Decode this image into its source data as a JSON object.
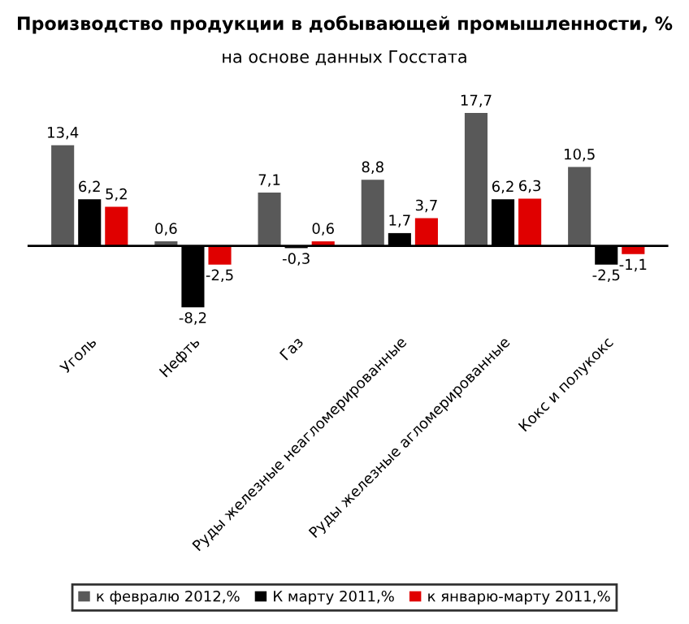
{
  "chart_data": {
    "type": "bar",
    "title": "Производство продукции в добывающей промышленности, %",
    "subtitle": "на основе данных Госстата",
    "categories": [
      "Уголь",
      "Нефть",
      "Газ",
      "Руды железные неагломерированные",
      "Руды железные агломерированные",
      "Кокс и полукокс"
    ],
    "series": [
      {
        "name": "к февралю 2012,%",
        "color": "#595959",
        "values": [
          13.4,
          0.6,
          7.1,
          8.8,
          17.7,
          10.5
        ],
        "value_labels": [
          "13,4",
          "0,6",
          "7,1",
          "8,8",
          "17,7",
          "10,5"
        ]
      },
      {
        "name": "К марту 2011,%",
        "color": "#000000",
        "values": [
          6.2,
          -8.2,
          -0.3,
          1.7,
          6.2,
          -2.5
        ],
        "value_labels": [
          "6,2",
          "-8,2",
          "-0,3",
          "1,7",
          "6,2",
          "-2,5"
        ]
      },
      {
        "name": "к январю-марту 2011,%",
        "color": "#e00000",
        "values": [
          5.2,
          -2.5,
          0.6,
          3.7,
          6.3,
          -1.1
        ],
        "value_labels": [
          "5,2",
          "-2,5",
          "0,6",
          "3,7",
          "6,3",
          "-1,1"
        ]
      }
    ],
    "legend": "bottom",
    "grid": false
  }
}
